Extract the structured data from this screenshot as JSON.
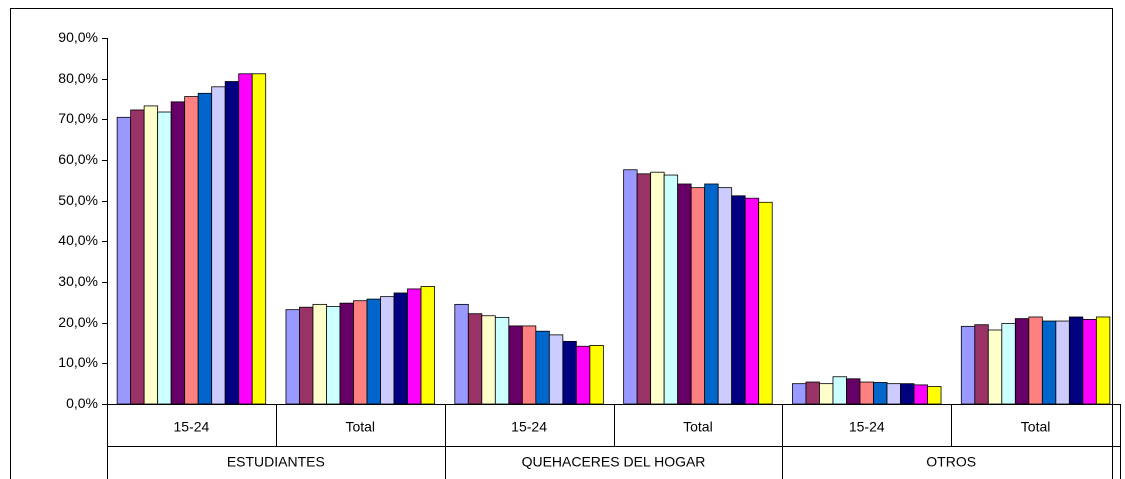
{
  "chart_data": {
    "type": "bar",
    "categories": [
      "15-24",
      "Total",
      "15-24",
      "Total",
      "15-24",
      "Total"
    ],
    "groups": [
      "ESTUDIANTES",
      "QUEHACERES DEL HOGAR",
      "OTROS"
    ],
    "series": [
      {
        "color": "#9999ff",
        "values": [
          70.5,
          23.2,
          24.5,
          57.6,
          5.0,
          19.1
        ]
      },
      {
        "color": "#993366",
        "values": [
          72.3,
          23.8,
          22.2,
          56.6,
          5.4,
          19.5
        ]
      },
      {
        "color": "#ffffcc",
        "values": [
          73.3,
          24.5,
          21.7,
          57.0,
          5.0,
          18.2
        ]
      },
      {
        "color": "#ccffff",
        "values": [
          71.8,
          24.0,
          21.3,
          56.3,
          6.7,
          19.8
        ]
      },
      {
        "color": "#660066",
        "values": [
          74.3,
          24.8,
          19.2,
          54.1,
          6.2,
          21.0
        ]
      },
      {
        "color": "#ff8080",
        "values": [
          75.6,
          25.4,
          19.2,
          53.2,
          5.4,
          21.4
        ]
      },
      {
        "color": "#0066cc",
        "values": [
          76.4,
          25.8,
          17.9,
          54.1,
          5.3,
          20.4
        ]
      },
      {
        "color": "#ccccff",
        "values": [
          78.0,
          26.4,
          17.0,
          53.2,
          5.0,
          20.4
        ]
      },
      {
        "color": "#000080",
        "values": [
          79.3,
          27.3,
          15.4,
          51.2,
          5.0,
          21.4
        ]
      },
      {
        "color": "#ff00ff",
        "values": [
          81.2,
          28.3,
          14.2,
          50.6,
          4.7,
          20.8
        ]
      },
      {
        "color": "#ffff00",
        "values": [
          81.2,
          28.9,
          14.4,
          49.6,
          4.3,
          21.4
        ]
      }
    ],
    "ylim": [
      0,
      90
    ],
    "yticks": [
      {
        "value": 0,
        "label": "0,0%"
      },
      {
        "value": 10,
        "label": "10,0%"
      },
      {
        "value": 20,
        "label": "20,0%"
      },
      {
        "value": 30,
        "label": "30,0%"
      },
      {
        "value": 40,
        "label": "40,0%"
      },
      {
        "value": 50,
        "label": "50,0%"
      },
      {
        "value": 60,
        "label": "60,0%"
      },
      {
        "value": 70,
        "label": "70,0%"
      },
      {
        "value": 80,
        "label": "80,0%"
      },
      {
        "value": 90,
        "label": "90,0%"
      }
    ],
    "grid": false
  }
}
